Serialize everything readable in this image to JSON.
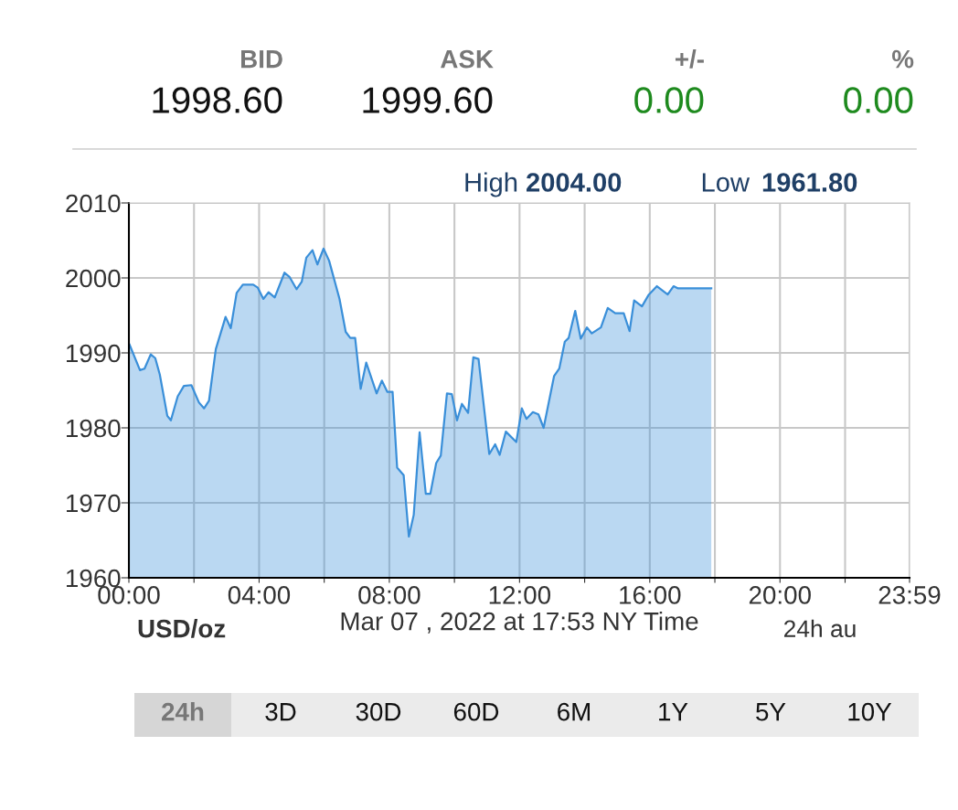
{
  "chart_data": {
    "type": "area",
    "xlabel": "Mar 07 , 2022 at 17:53 NY Time",
    "x": [
      0.02,
      0.34,
      0.48,
      0.67,
      0.81,
      0.95,
      1.18,
      1.29,
      1.5,
      1.69,
      1.92,
      2.15,
      2.31,
      2.46,
      2.67,
      2.97,
      3.13,
      3.31,
      3.5,
      3.82,
      3.96,
      4.13,
      4.29,
      4.48,
      4.78,
      4.94,
      5.15,
      5.31,
      5.45,
      5.64,
      5.79,
      5.98,
      6.15,
      6.47,
      6.66,
      6.8,
      6.95,
      7.12,
      7.29,
      7.61,
      7.77,
      7.94,
      8.1,
      8.24,
      8.44,
      8.6,
      8.75,
      8.93,
      9.12,
      9.26,
      9.44,
      9.58,
      9.77,
      9.92,
      10.08,
      10.23,
      10.42,
      10.58,
      10.74,
      11.07,
      11.25,
      11.39,
      11.58,
      11.9,
      12.07,
      12.21,
      12.41,
      12.58,
      12.74,
      13.06,
      13.22,
      13.39,
      13.51,
      13.71,
      13.88,
      14.07,
      14.22,
      14.5,
      14.71,
      14.94,
      15.2,
      15.38,
      15.52,
      15.76,
      15.96,
      16.22,
      16.55,
      16.73,
      16.87,
      17.89
    ],
    "series": [
      {
        "color": "#3a8fd9",
        "values": [
          1991.1,
          1987.7,
          1987.9,
          1989.8,
          1989.3,
          1987.1,
          1981.6,
          1981.0,
          1984.2,
          1985.6,
          1985.7,
          1983.4,
          1982.6,
          1983.6,
          1990.5,
          1994.8,
          1993.3,
          1998.0,
          1999.1,
          1999.1,
          1998.7,
          1997.2,
          1998.1,
          1997.4,
          2000.7,
          2000.1,
          1998.5,
          1999.5,
          2002.7,
          2003.7,
          2001.8,
          2003.9,
          2002.3,
          1997.2,
          1992.8,
          1992.0,
          1992.0,
          1985.2,
          1988.7,
          1984.6,
          1986.3,
          1984.8,
          1984.8,
          1974.7,
          1973.7,
          1965.5,
          1968.4,
          1979.4,
          1971.2,
          1971.2,
          1975.3,
          1976.3,
          1984.6,
          1984.5,
          1981.0,
          1983.2,
          1982.0,
          1989.4,
          1989.2,
          1976.5,
          1977.8,
          1976.4,
          1979.5,
          1978.1,
          1982.6,
          1981.2,
          1982.1,
          1981.8,
          1980.0,
          1986.9,
          1987.9,
          1991.5,
          1992.0,
          1995.6,
          1991.9,
          1993.4,
          1992.6,
          1993.4,
          1996.0,
          1995.3,
          1995.3,
          1992.9,
          1997.0,
          1996.2,
          1997.7,
          1998.9,
          1997.8,
          1998.9,
          1998.6,
          1998.6
        ]
      }
    ],
    "xlim": [
      0,
      23.98
    ],
    "xticks": [
      {
        "value": 0,
        "label": "00:00"
      },
      {
        "value": 2,
        "label": null
      },
      {
        "value": 4,
        "label": "04:00"
      },
      {
        "value": 6,
        "label": null
      },
      {
        "value": 8,
        "label": "08:00"
      },
      {
        "value": 10,
        "label": null
      },
      {
        "value": 12,
        "label": "12:00"
      },
      {
        "value": 14,
        "label": null
      },
      {
        "value": 16,
        "label": "16:00"
      },
      {
        "value": 18,
        "label": null
      },
      {
        "value": 20,
        "label": "20:00"
      },
      {
        "value": 22,
        "label": null
      },
      {
        "value": 23.98,
        "label": "23:59"
      }
    ],
    "ylim": [
      1960,
      2010
    ],
    "yticks": [
      1960,
      1970,
      1980,
      1990,
      2000,
      2010
    ],
    "grid": true,
    "annotations": [
      "BID",
      "ASK",
      "+/-",
      "%",
      "1998.60",
      "1999.60",
      "0.00",
      "0.00",
      "High",
      "2004.00",
      "Low",
      "1961.80",
      "24h au",
      "24h",
      "3D",
      "30D",
      "60D",
      "6M",
      "1Y",
      "5Y",
      "10Y",
      "USD/oz"
    ]
  }
}
